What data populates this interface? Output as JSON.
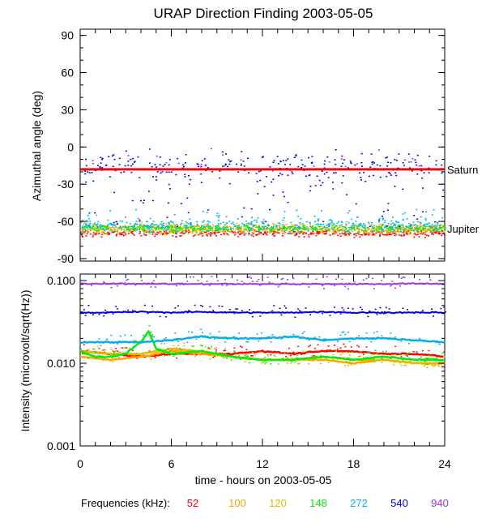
{
  "chart_data": {
    "title": "URAP Direction Finding  2003-05-05",
    "xlabel": "time - hours on 2003-05-05",
    "xlim": [
      0,
      24
    ],
    "x_ticks": [
      0,
      6,
      12,
      18,
      24
    ],
    "x_tick_labels": [
      "0",
      "6",
      "12",
      "18",
      "24"
    ],
    "panels": [
      {
        "id": "azimuth",
        "type": "scatter",
        "ylabel": "Azimuthal angle (deg)",
        "ylim": [
          -92,
          95
        ],
        "y_ticks": [
          90,
          60,
          30,
          0,
          -30,
          -60,
          -90
        ],
        "y_tick_labels": [
          "90",
          "60",
          "30",
          "0",
          "-30",
          "-60",
          "-90"
        ],
        "reference_lines": [
          {
            "name": "Saturn",
            "y": -18
          },
          {
            "name": "Jupiter",
            "y": -66
          }
        ],
        "series": [
          {
            "name": "52",
            "pattern": "band",
            "center": -69,
            "spread": 3
          },
          {
            "name": "100",
            "pattern": "band",
            "center": -66,
            "spread": 4
          },
          {
            "name": "120",
            "pattern": "band",
            "center": -65,
            "spread": 4
          },
          {
            "name": "148",
            "pattern": "band",
            "center": -65,
            "spread": 3
          },
          {
            "name": "272",
            "pattern": "band",
            "center": -63,
            "spread": 6
          },
          {
            "name": "540",
            "pattern": "scatter",
            "center": -15,
            "spread": 12
          },
          {
            "name": "940",
            "pattern": "sparse",
            "center": -12,
            "spread": 8
          }
        ]
      },
      {
        "id": "intensity",
        "type": "line",
        "ylabel": "Intensity (microvolt/sqrt(Hz))",
        "scale": "log",
        "ylim": [
          0.001,
          0.12
        ],
        "y_ticks": [
          0.1,
          0.01,
          0.001
        ],
        "y_tick_labels": [
          "0.100",
          "0.010",
          "0.001"
        ],
        "series": [
          {
            "name": "52",
            "x": [
              0,
              2,
              4,
              6,
              8,
              10,
              12,
              14,
              16,
              18,
              20,
              22,
              24
            ],
            "y": [
              0.014,
              0.013,
              0.012,
              0.013,
              0.013,
              0.013,
              0.014,
              0.013,
              0.014,
              0.014,
              0.013,
              0.013,
              0.012
            ]
          },
          {
            "name": "100",
            "x": [
              0,
              2,
              4,
              6,
              8,
              10,
              12,
              14,
              16,
              18,
              20,
              22,
              24
            ],
            "y": [
              0.012,
              0.011,
              0.012,
              0.014,
              0.013,
              0.012,
              0.011,
              0.011,
              0.011,
              0.01,
              0.011,
              0.01,
              0.01
            ]
          },
          {
            "name": "120",
            "x": [
              0,
              2,
              4,
              6,
              8,
              10,
              12,
              14,
              16,
              18,
              20,
              22,
              24
            ],
            "y": [
              0.014,
              0.013,
              0.013,
              0.015,
              0.014,
              0.012,
              0.011,
              0.011,
              0.012,
              0.011,
              0.011,
              0.01,
              0.01
            ]
          },
          {
            "name": "148",
            "x": [
              0,
              1,
              2,
              3,
              4,
              4.5,
              5,
              6,
              8,
              10,
              12,
              14,
              16,
              18,
              20,
              22,
              24
            ],
            "y": [
              0.014,
              0.012,
              0.012,
              0.013,
              0.018,
              0.024,
              0.015,
              0.013,
              0.014,
              0.012,
              0.011,
              0.011,
              0.012,
              0.011,
              0.012,
              0.011,
              0.011
            ]
          },
          {
            "name": "272",
            "x": [
              0,
              2,
              4,
              6,
              8,
              10,
              12,
              14,
              16,
              18,
              20,
              22,
              24
            ],
            "y": [
              0.018,
              0.018,
              0.018,
              0.019,
              0.021,
              0.02,
              0.02,
              0.021,
              0.019,
              0.02,
              0.02,
              0.019,
              0.018
            ]
          },
          {
            "name": "540",
            "x": [
              0,
              2,
              4,
              6,
              8,
              10,
              12,
              14,
              16,
              18,
              20,
              22,
              24
            ],
            "y": [
              0.041,
              0.041,
              0.042,
              0.041,
              0.042,
              0.041,
              0.041,
              0.041,
              0.042,
              0.041,
              0.041,
              0.041,
              0.041
            ]
          },
          {
            "name": "940",
            "x": [
              0,
              2,
              4,
              6,
              8,
              10,
              12,
              14,
              16,
              18,
              20,
              22,
              24
            ],
            "y": [
              0.092,
              0.091,
              0.092,
              0.091,
              0.091,
              0.091,
              0.091,
              0.091,
              0.091,
              0.091,
              0.091,
              0.092,
              0.092
            ]
          }
        ]
      }
    ],
    "legend": {
      "label": "Frequencies (kHz):",
      "entries": [
        {
          "name": "52",
          "color": "#ff0000"
        },
        {
          "name": "100",
          "color": "#ffa500"
        },
        {
          "name": "120",
          "color": "#ddbb00"
        },
        {
          "name": "148",
          "color": "#00ee00"
        },
        {
          "name": "272",
          "color": "#00b0f0"
        },
        {
          "name": "540",
          "color": "#0000dd"
        },
        {
          "name": "940",
          "color": "#9933ee"
        }
      ]
    }
  }
}
